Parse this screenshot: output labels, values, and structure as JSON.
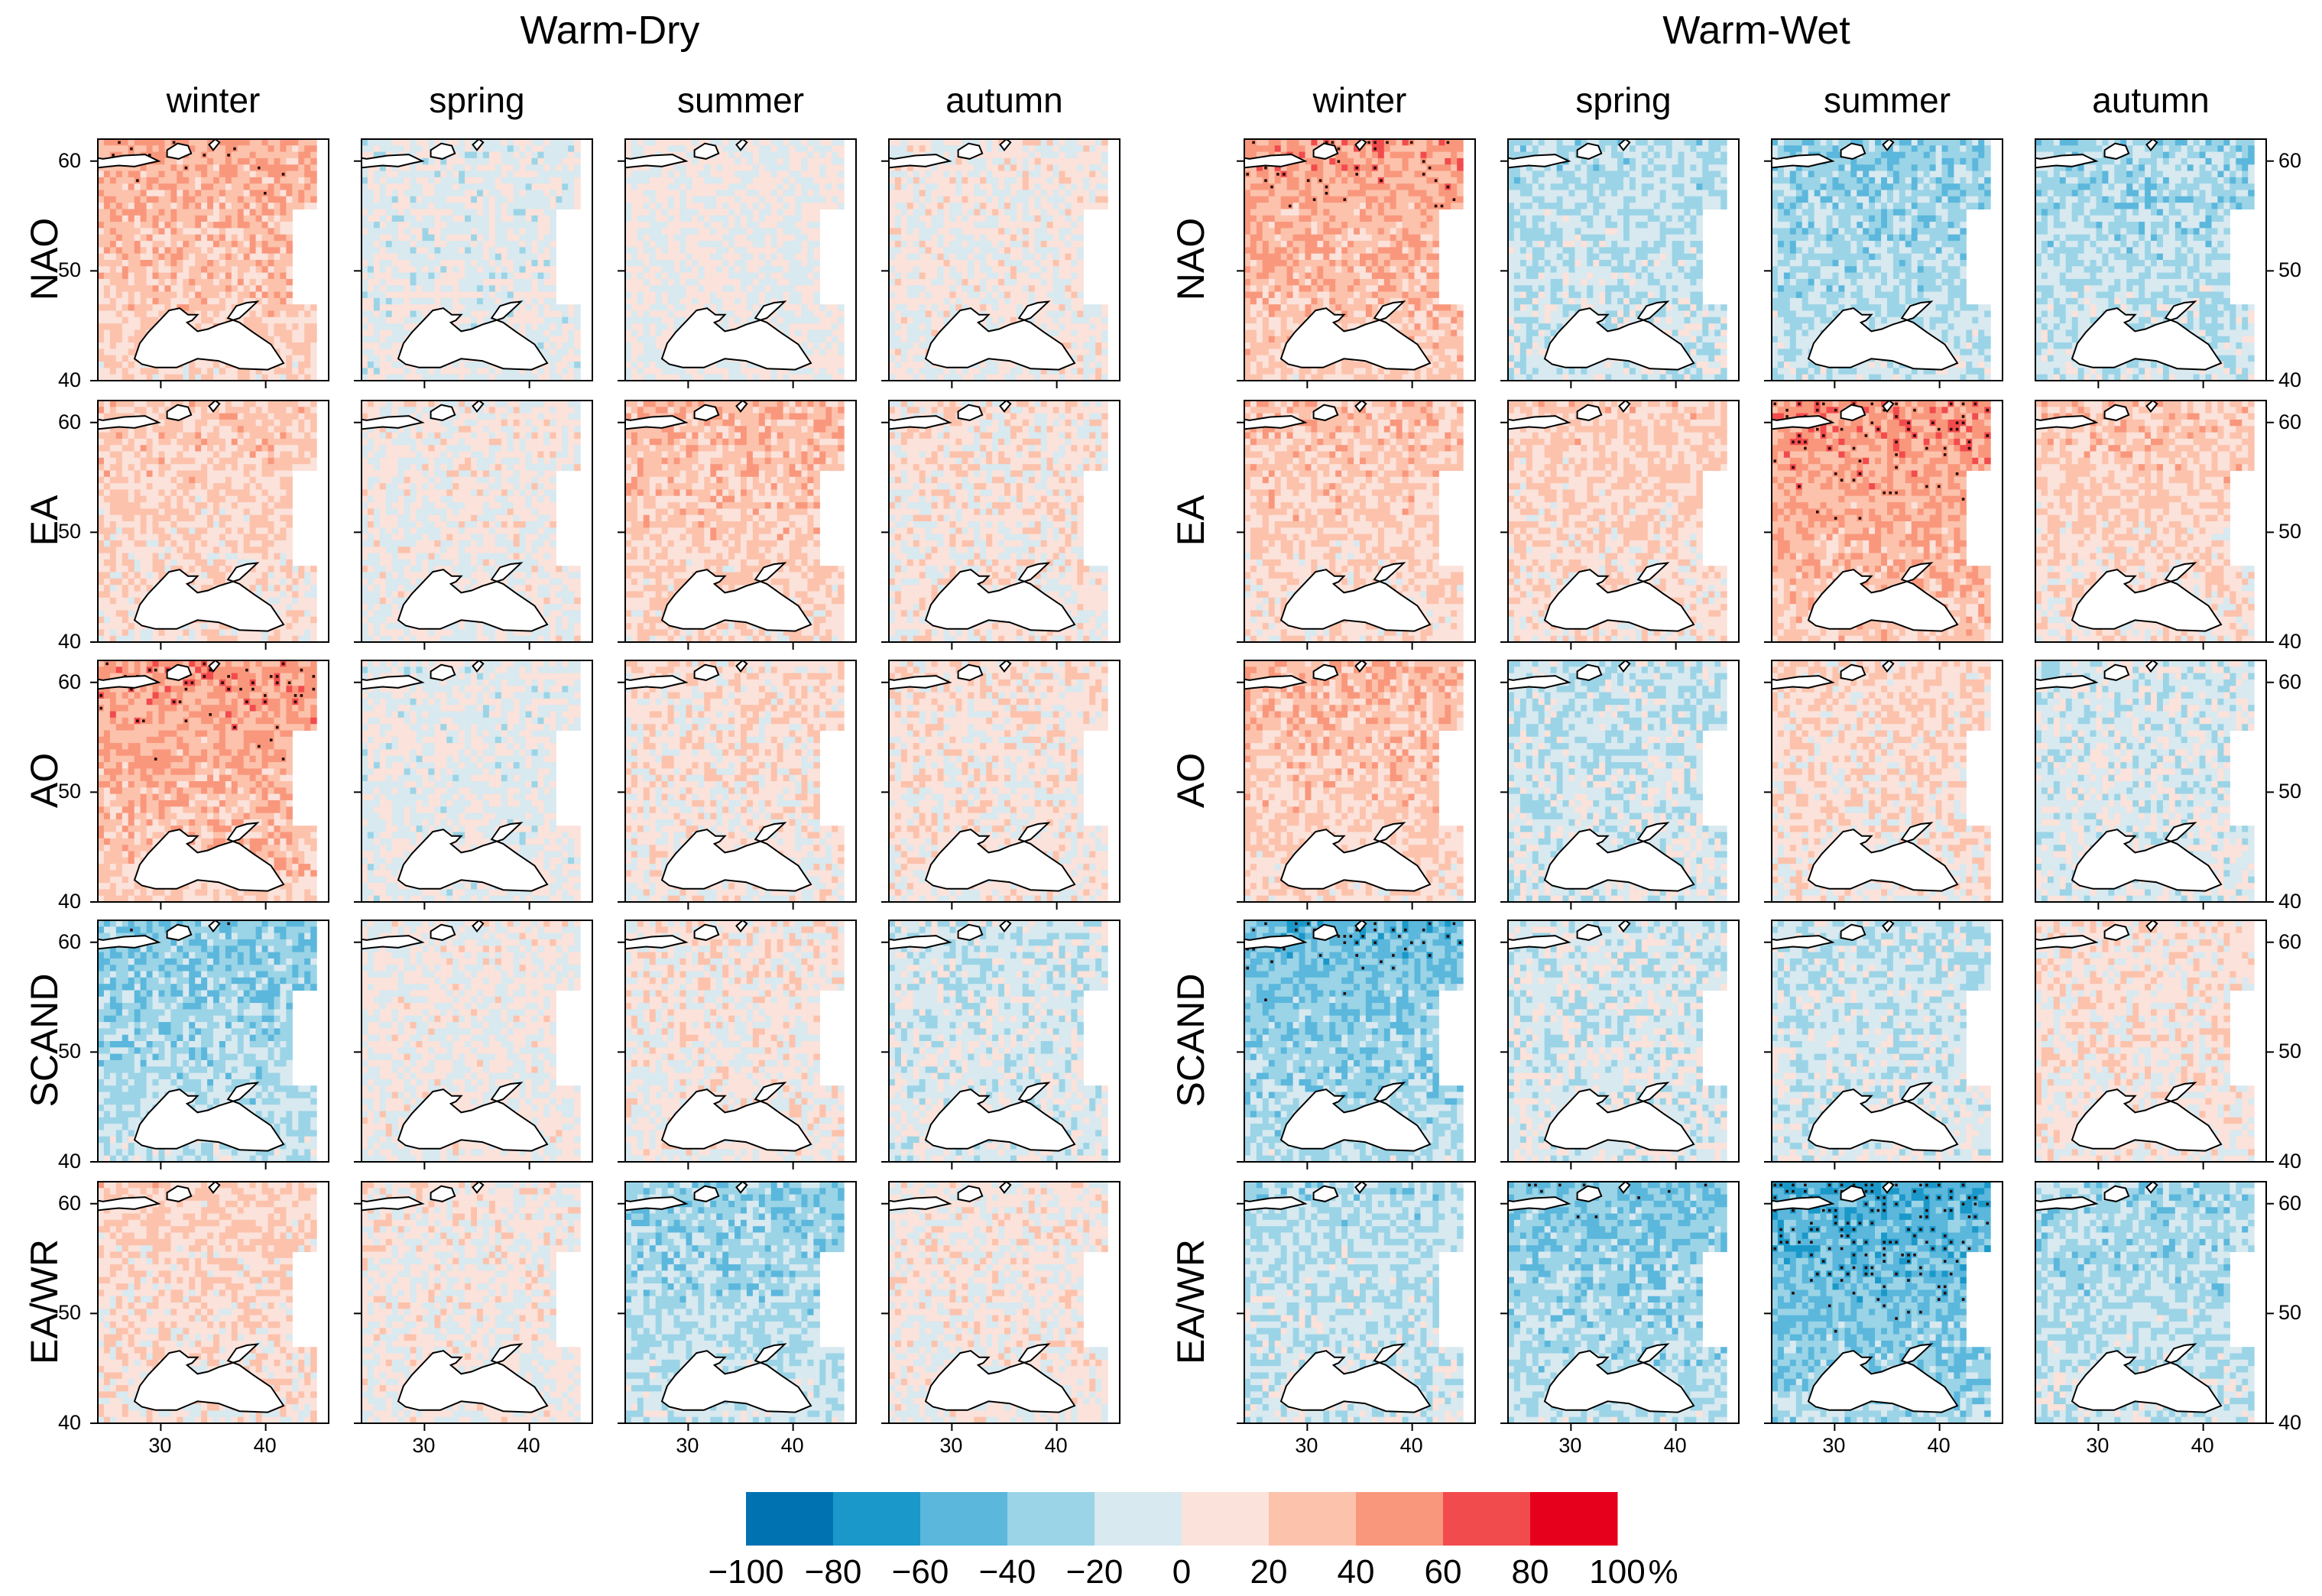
{
  "chart_data": {
    "type": "heatmap",
    "description_groups": [
      "Warm-Dry",
      "Warm-Wet"
    ],
    "seasons": [
      "winter",
      "spring",
      "summer",
      "autumn"
    ],
    "indices": [
      "NAO",
      "EA",
      "AO",
      "SCAND",
      "EA/WR"
    ],
    "x_axis": {
      "ticks": [
        30,
        40
      ],
      "range": [
        24,
        46
      ]
    },
    "y_axis": {
      "ticks": [
        40,
        50,
        60
      ],
      "range": [
        40,
        62
      ]
    },
    "colorbar": {
      "ticks": [
        "−100",
        "−80",
        "−60",
        "−40",
        "−20",
        "0",
        "20",
        "40",
        "60",
        "80",
        "100"
      ],
      "unit": "%",
      "colors": [
        "#0072b2",
        "#1a98c9",
        "#5bb7dc",
        "#9bd4e6",
        "#d8e9f0",
        "#fbe2da",
        "#fcc2ac",
        "#f9977c",
        "#f24b4d",
        "#e6001c"
      ]
    },
    "panels": {
      "Warm-Dry": {
        "NAO": {
          "winter": 35,
          "spring": -3,
          "summer": 0,
          "autumn": 4
        },
        "EA": {
          "winter": 22,
          "spring": 3,
          "summer": 28,
          "autumn": 10
        },
        "AO": {
          "winter": 42,
          "spring": -2,
          "summer": 12,
          "autumn": 10
        },
        "SCAND": {
          "winter": -32,
          "spring": 2,
          "summer": 8,
          "autumn": -10
        },
        "EA/WR": {
          "winter": 18,
          "spring": 5,
          "summer": -28,
          "autumn": 6
        }
      },
      "Warm-Wet": {
        "NAO": {
          "winter": 40,
          "spring": -20,
          "summer": -30,
          "autumn": -25
        },
        "EA": {
          "winter": 25,
          "spring": 20,
          "summer": 45,
          "autumn": 22
        },
        "AO": {
          "winter": 30,
          "spring": -15,
          "summer": 15,
          "autumn": -10
        },
        "SCAND": {
          "winter": -40,
          "spring": -10,
          "summer": -15,
          "autumn": 10
        },
        "EA/WR": {
          "winter": -20,
          "spring": -35,
          "summer": -50,
          "autumn": -25
        }
      }
    }
  }
}
